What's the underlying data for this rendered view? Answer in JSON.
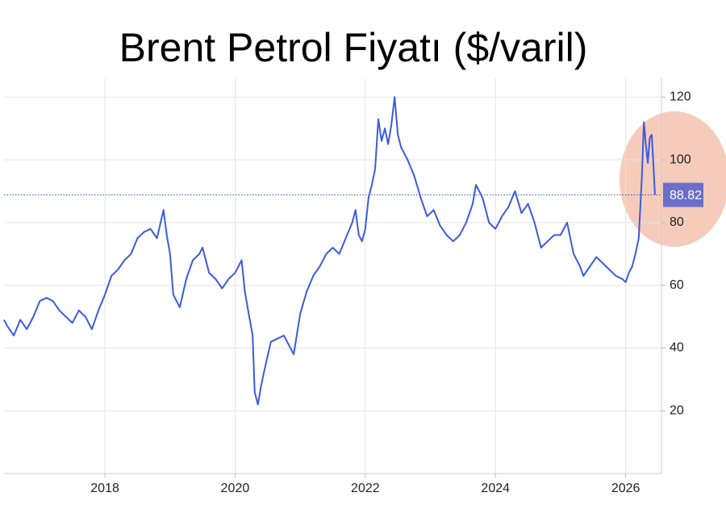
{
  "chart_data": {
    "type": "line",
    "title": "Brent Petrol Fiyatı ($/varil)",
    "series": [
      {
        "color": "#3a5be0",
        "x": [
          2016.45,
          2016.5,
          2016.6,
          2016.7,
          2016.8,
          2016.9,
          2017.0,
          2017.1,
          2017.2,
          2017.3,
          2017.4,
          2017.5,
          2017.6,
          2017.7,
          2017.8,
          2017.9,
          2018.0,
          2018.1,
          2018.2,
          2018.3,
          2018.4,
          2018.5,
          2018.6,
          2018.7,
          2018.8,
          2018.9,
          2018.95,
          2019.0,
          2019.05,
          2019.15,
          2019.25,
          2019.35,
          2019.45,
          2019.5,
          2019.6,
          2019.7,
          2019.8,
          2019.9,
          2020.0,
          2020.1,
          2020.15,
          2020.2,
          2020.27,
          2020.3,
          2020.35,
          2020.4,
          2020.45,
          2020.55,
          2020.65,
          2020.75,
          2020.85,
          2020.9,
          2021.0,
          2021.1,
          2021.2,
          2021.3,
          2021.4,
          2021.5,
          2021.6,
          2021.7,
          2021.8,
          2021.85,
          2021.9,
          2021.95,
          2022.0,
          2022.05,
          2022.1,
          2022.15,
          2022.2,
          2022.25,
          2022.3,
          2022.35,
          2022.4,
          2022.45,
          2022.5,
          2022.55,
          2022.65,
          2022.75,
          2022.85,
          2022.95,
          2023.05,
          2023.15,
          2023.25,
          2023.35,
          2023.45,
          2023.55,
          2023.65,
          2023.7,
          2023.8,
          2023.9,
          2024.0,
          2024.1,
          2024.2,
          2024.3,
          2024.4,
          2024.5,
          2024.6,
          2024.7,
          2024.8,
          2024.9,
          2025.0,
          2025.1,
          2025.2,
          2025.3,
          2025.35,
          2025.45,
          2025.55,
          2025.65,
          2025.75,
          2025.85,
          2025.95,
          2026.0,
          2026.05,
          2026.1,
          2026.15,
          2026.2,
          2026.25,
          2026.28,
          2026.31,
          2026.34,
          2026.37,
          2026.4,
          2026.42,
          2026.45
        ],
        "values": [
          49,
          47,
          44,
          49,
          46,
          50,
          55,
          56,
          55,
          52,
          50,
          48,
          52,
          50,
          46,
          52,
          57,
          63,
          65,
          68,
          70,
          75,
          77,
          78,
          75,
          84,
          76,
          70,
          57,
          53,
          62,
          68,
          70,
          72,
          64,
          62,
          59,
          62,
          64,
          68,
          58,
          52,
          44,
          26,
          22,
          28,
          33,
          42,
          43,
          44,
          40,
          38,
          51,
          58,
          63,
          66,
          70,
          72,
          70,
          75,
          80,
          84,
          76,
          74,
          78,
          88,
          92,
          97,
          113,
          106,
          110,
          105,
          111,
          120,
          108,
          104,
          100,
          95,
          88,
          82,
          84,
          79,
          76,
          74,
          76,
          80,
          86,
          92,
          88,
          80,
          78,
          82,
          85,
          90,
          83,
          86,
          80,
          72,
          74,
          76,
          76,
          80,
          70,
          66,
          63,
          66,
          69,
          67,
          65,
          63,
          62,
          61,
          64,
          66,
          70,
          75,
          95,
          112,
          105,
          99,
          107,
          108,
          101,
          88.82
        ]
      }
    ],
    "current_value": 88.82,
    "xlim": [
      2016.45,
      2026.55
    ],
    "xticks": [
      2018,
      2020,
      2022,
      2024,
      2026
    ],
    "ylim": [
      0,
      126
    ],
    "yticks": [
      20,
      40,
      60,
      80,
      100,
      120
    ],
    "grid": true
  }
}
